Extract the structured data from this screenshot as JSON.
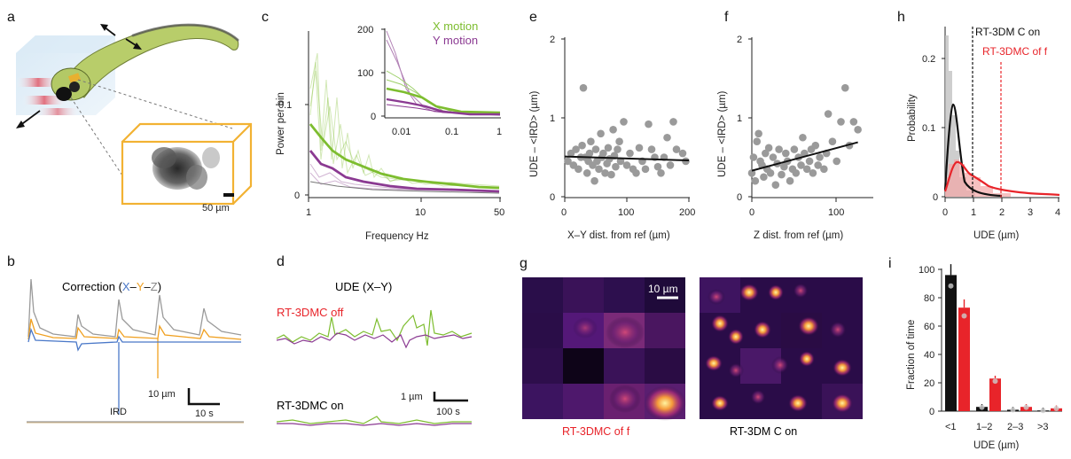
{
  "panels": {
    "a": "a",
    "b": "b",
    "c": "c",
    "d": "d",
    "e": "e",
    "f": "f",
    "g": "g",
    "h": "h",
    "i": "i"
  },
  "panel_a": {
    "scale_label": "50 µm"
  },
  "panel_b": {
    "title_prefix": "Correction (",
    "title_x": "X",
    "title_dash1": "–",
    "title_y": "Y",
    "title_dash2": "–",
    "title_z": "Z",
    "title_suffix": ")",
    "scale_y": "10 µm",
    "scale_x": "10 s",
    "ird_label": "IRD"
  },
  "panel_c": {
    "xlabel": "Frequency Hz",
    "ylabel": "Power per bin",
    "yticks": [
      "0.1",
      "0"
    ],
    "xticks": [
      "1",
      "10",
      "50"
    ],
    "inset_yticks": [
      "200",
      "100",
      "0"
    ],
    "inset_xticks": [
      "0.01",
      "0.1",
      "1"
    ],
    "legend_x": "X motion",
    "legend_y": "Y motion"
  },
  "panel_d": {
    "title": "UDE (X–Y)",
    "off_label": "RT-3DMC off",
    "on_label": "RT-3DMC   on",
    "scale_y": "1 µm",
    "scale_x": "100 s"
  },
  "panel_e": {
    "xlabel": "X–Y  dist. from ref  (µm)",
    "ylabel": "UDE – <IRD>   (µm)",
    "yticks": [
      "2",
      "1",
      "0"
    ],
    "xticks": [
      "0",
      "100",
      "200"
    ]
  },
  "panel_f": {
    "xlabel": "Z dist. from ref  (µm)",
    "ylabel": "UDE – <IRD>   (µm)",
    "yticks": [
      "2",
      "1",
      "0"
    ],
    "xticks": [
      "0",
      "100"
    ]
  },
  "panel_g": {
    "scale": "10 µm",
    "off_label": "RT-3DMC of  f",
    "on_label": "RT-3DM  C  on"
  },
  "panel_h": {
    "xlabel": "UDE   (µm)",
    "ylabel": "Probability",
    "yticks": [
      "0.2",
      "0.1",
      "0"
    ],
    "xticks": [
      "0",
      "1",
      "2",
      "3",
      "4"
    ],
    "on_label": "RT-3DM  C  on",
    "off_label": "RT-3DMC of  f"
  },
  "panel_i": {
    "xlabel": "UDE  (µm)",
    "ylabel": "Fraction of time",
    "yticks": [
      "100",
      "80",
      "60",
      "40",
      "20",
      "0"
    ],
    "categories": [
      "<1",
      "1–2",
      "2–3",
      ">3"
    ]
  },
  "colors": {
    "green": "#7dbd2f",
    "purple": "#8b3a92",
    "red": "#e8242a",
    "blue": "#4a78c8",
    "orange": "#f0a020",
    "gray": "#888888",
    "black": "#111111",
    "gold": "#f2b233"
  },
  "chart_data": [
    {
      "panel": "e",
      "type": "scatter",
      "xlim": [
        0,
        200
      ],
      "ylim": [
        0,
        2
      ],
      "x": [
        5,
        10,
        14,
        18,
        22,
        26,
        28,
        30,
        33,
        36,
        38,
        40,
        42,
        45,
        48,
        50,
        52,
        55,
        58,
        60,
        62,
        65,
        68,
        70,
        72,
        75,
        78,
        80,
        82,
        85,
        88,
        90,
        95,
        100,
        105,
        110,
        115,
        120,
        125,
        130,
        135,
        140,
        145,
        150,
        155,
        160,
        165,
        170,
        175,
        180,
        190,
        195
      ],
      "y": [
        0.45,
        0.55,
        0.4,
        0.6,
        0.35,
        0.5,
        0.65,
        1.38,
        0.5,
        0.3,
        0.45,
        0.55,
        0.7,
        0.4,
        0.2,
        0.6,
        0.45,
        0.35,
        0.8,
        0.5,
        0.55,
        0.3,
        0.42,
        0.62,
        0.48,
        0.28,
        0.85,
        0.52,
        0.38,
        0.6,
        0.7,
        0.45,
        0.95,
        0.4,
        0.55,
        0.35,
        0.3,
        0.62,
        0.45,
        0.35,
        0.92,
        0.6,
        0.5,
        0.38,
        0.3,
        0.5,
        0.75,
        0.4,
        0.95,
        0.6,
        0.55,
        0.45
      ],
      "fit": [
        [
          0,
          0.51
        ],
        [
          200,
          0.46
        ]
      ]
    },
    {
      "panel": "f",
      "type": "scatter",
      "xlim": [
        0,
        140
      ],
      "ylim": [
        0,
        2
      ],
      "x": [
        0,
        2,
        4,
        6,
        8,
        10,
        12,
        14,
        16,
        18,
        20,
        22,
        25,
        28,
        30,
        32,
        35,
        38,
        40,
        42,
        45,
        48,
        50,
        52,
        55,
        58,
        60,
        62,
        65,
        68,
        70,
        72,
        75,
        78,
        80,
        85,
        88,
        90,
        95,
        100,
        105,
        110,
        115,
        120,
        125
      ],
      "y": [
        0.3,
        0.5,
        0.2,
        0.7,
        0.8,
        0.45,
        0.4,
        0.25,
        0.55,
        0.35,
        0.62,
        0.3,
        0.5,
        0.15,
        0.42,
        0.6,
        0.28,
        0.38,
        0.55,
        0.45,
        0.2,
        0.35,
        0.6,
        0.3,
        0.5,
        0.4,
        0.75,
        0.55,
        0.35,
        0.45,
        0.6,
        0.3,
        0.65,
        0.4,
        0.5,
        0.35,
        0.55,
        1.05,
        0.7,
        0.45,
        0.95,
        1.38,
        0.65,
        0.95,
        0.85
      ],
      "fit": [
        [
          0,
          0.33
        ],
        [
          125,
          0.69
        ]
      ]
    },
    {
      "panel": "i",
      "type": "bar",
      "categories": [
        "<1",
        "1–2",
        "2–3",
        ">3"
      ],
      "series": [
        {
          "color": "black",
          "values": [
            96,
            3,
            1,
            0.5
          ]
        },
        {
          "color": "red",
          "values": [
            73,
            23,
            3,
            2
          ]
        }
      ],
      "ylim": [
        0,
        100
      ]
    }
  ]
}
